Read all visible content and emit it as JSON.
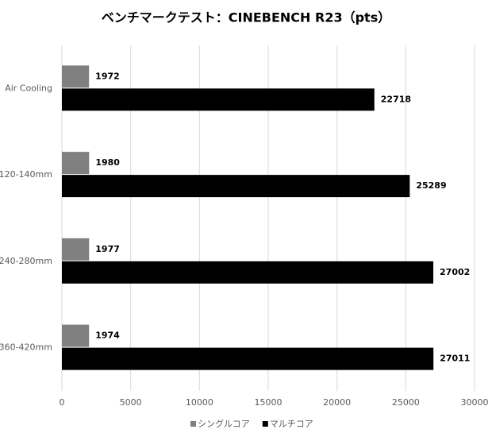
{
  "chart_data": {
    "type": "bar",
    "orientation": "horizontal",
    "title": "ベンチマークテスト：CINEBENCH R23（pts）",
    "categories": [
      "Air Cooling",
      "120-140mm",
      "240-280mm",
      "360-420mm"
    ],
    "series": [
      {
        "name": "シングルコア",
        "color": "#808080",
        "values": [
          1972,
          1980,
          1977,
          1974
        ]
      },
      {
        "name": "マルチコア",
        "color": "#000000",
        "values": [
          22718,
          25289,
          27002,
          27011
        ]
      }
    ],
    "xlim": [
      0,
      30000
    ],
    "xticks": [
      0,
      5000,
      10000,
      15000,
      20000,
      25000,
      30000
    ],
    "grid": true,
    "legend": "bottom"
  }
}
